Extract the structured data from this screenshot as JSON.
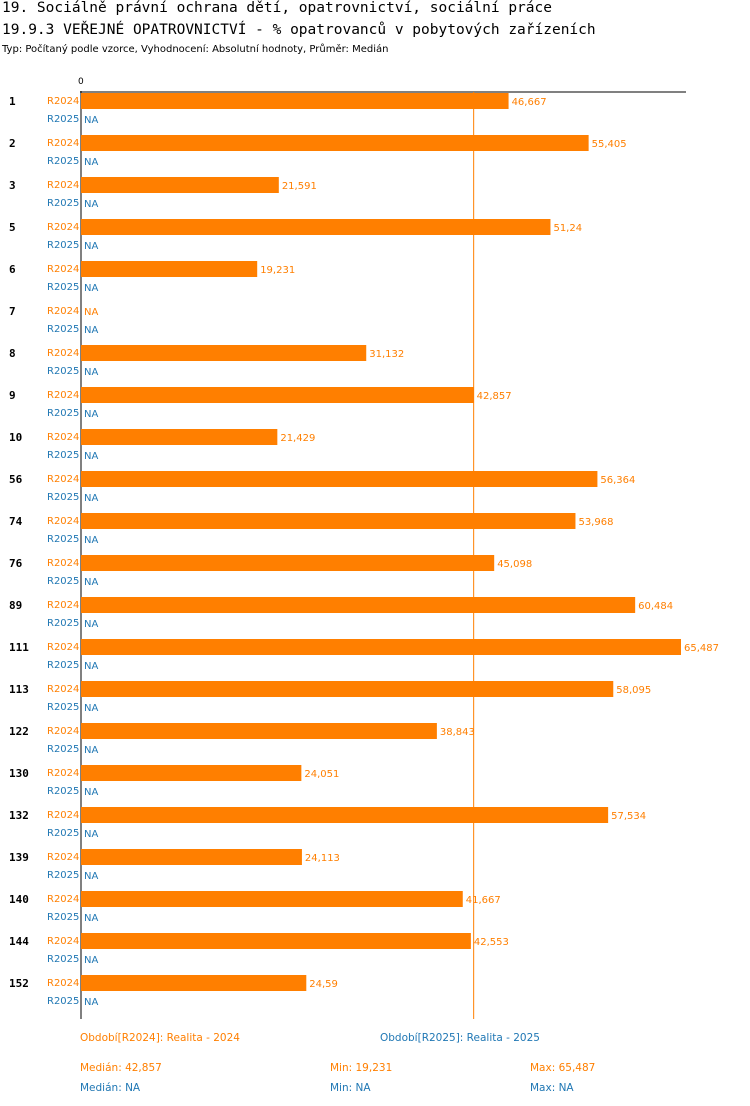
{
  "header": {
    "title_line1": "19. Sociálně právní ochrana dětí, opatrovnictví, sociální práce",
    "title_line2": "19.9.3 VEŘEJNÉ OPATROVNICTVÍ - % opatrovanců v pobytových zařízeních",
    "subtitle": "Typ: Počítaný podle vzorce, Vyhodnocení: Absolutní hodnoty, Průměr: Medián"
  },
  "colors": {
    "r2024": "#ff7f00",
    "r2025": "#1f77b4",
    "axis": "#000000",
    "median_line": "#ff7f00"
  },
  "chart_data": {
    "type": "bar",
    "orientation": "horizontal",
    "title": "19.9.3 VEŘEJNÉ OPATROVNICTVÍ - % opatrovanců v pobytových zařízeních",
    "x_tick_label": "0",
    "xlim": [
      0,
      65.487
    ],
    "median_reference": 42.857,
    "categories": [
      "1",
      "2",
      "3",
      "5",
      "6",
      "7",
      "8",
      "9",
      "10",
      "56",
      "74",
      "76",
      "89",
      "111",
      "113",
      "122",
      "130",
      "132",
      "139",
      "140",
      "144",
      "152"
    ],
    "series": [
      {
        "name": "R2024",
        "values": [
          46.667,
          55.405,
          21.591,
          51.24,
          19.231,
          null,
          31.132,
          42.857,
          21.429,
          56.364,
          53.968,
          45.098,
          60.484,
          65.487,
          58.095,
          38.843,
          24.051,
          57.534,
          24.113,
          41.667,
          42.553,
          24.59
        ],
        "labels": [
          "46,667",
          "55,405",
          "21,591",
          "51,24",
          "19,231",
          "NA",
          "31,132",
          "42,857",
          "21,429",
          "56,364",
          "53,968",
          "45,098",
          "60,484",
          "65,487",
          "58,095",
          "38,843",
          "24,051",
          "57,534",
          "24,113",
          "41,667",
          "42,553",
          "24,59"
        ]
      },
      {
        "name": "R2025",
        "values": [
          null,
          null,
          null,
          null,
          null,
          null,
          null,
          null,
          null,
          null,
          null,
          null,
          null,
          null,
          null,
          null,
          null,
          null,
          null,
          null,
          null,
          null
        ],
        "labels": [
          "NA",
          "NA",
          "NA",
          "NA",
          "NA",
          "NA",
          "NA",
          "NA",
          "NA",
          "NA",
          "NA",
          "NA",
          "NA",
          "NA",
          "NA",
          "NA",
          "NA",
          "NA",
          "NA",
          "NA",
          "NA",
          "NA"
        ]
      }
    ]
  },
  "legend": {
    "period_2024": "Období[R2024]: Realita - 2024",
    "period_2025": "Období[R2025]: Realita - 2025",
    "r2024": {
      "median": "Medián: 42,857",
      "min": "Min: 19,231",
      "max": "Max: 65,487"
    },
    "r2025": {
      "median": "Medián: NA",
      "min": "Min: NA",
      "max": "Max: NA"
    }
  }
}
